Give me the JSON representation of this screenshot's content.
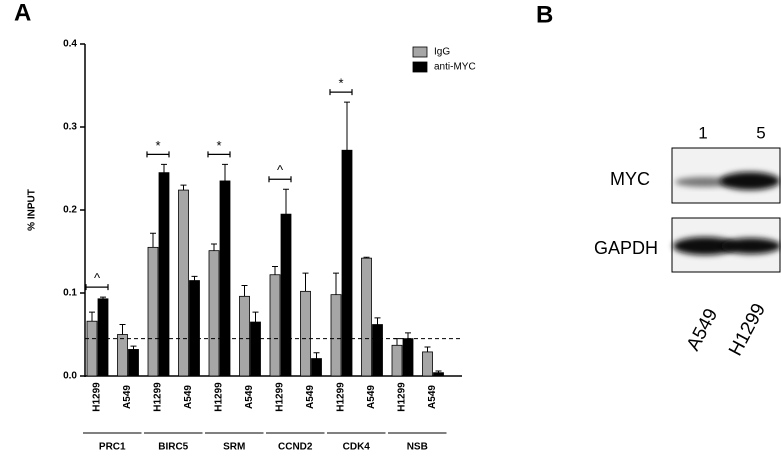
{
  "panel_labels": [
    "A",
    "B"
  ],
  "chart_data": {
    "type": "bar",
    "y_label": "% INPUT",
    "categories": [
      "H1299",
      "A549",
      "H1299",
      "A549",
      "H1299",
      "A549",
      "H1299",
      "A549",
      "H1299",
      "A549",
      "H1299",
      "A549"
    ],
    "groups": [
      "PRC1",
      "BIRC5",
      "SRM",
      "CCND2",
      "CDK4",
      "NSB"
    ],
    "series": [
      {
        "name": "IgG",
        "color": "#a6a6a6",
        "values": [
          0.066,
          0.05,
          0.155,
          0.224,
          0.151,
          0.096,
          0.122,
          0.102,
          0.098,
          0.142,
          0.037,
          0.029
        ],
        "errors": [
          0.011,
          0.012,
          0.017,
          0.006,
          0.008,
          0.013,
          0.01,
          0.022,
          0.026,
          0.001,
          0.008,
          0.006
        ]
      },
      {
        "name": "anti-MYC",
        "color": "#000000",
        "values": [
          0.093,
          0.032,
          0.245,
          0.115,
          0.235,
          0.065,
          0.195,
          0.021,
          0.272,
          0.062,
          0.045,
          0.004
        ],
        "errors": [
          0.002,
          0.004,
          0.01,
          0.005,
          0.02,
          0.012,
          0.03,
          0.007,
          0.058,
          0.008,
          0.007,
          0.002
        ]
      }
    ],
    "significance": [
      "^",
      null,
      "*",
      null,
      "*",
      null,
      "^",
      null,
      "*",
      null,
      null,
      null
    ],
    "reference_line": 0.045,
    "ylim": [
      0,
      0.4
    ],
    "yticks": [
      {
        "value": 0,
        "label": "0.0"
      },
      0.1,
      0.2,
      0.3,
      0.4
    ]
  },
  "blot": {
    "lanes": [
      "1",
      "5"
    ],
    "bands": [
      "MYC",
      "GAPDH"
    ],
    "cell_lines": [
      "A549",
      "H1299"
    ]
  }
}
